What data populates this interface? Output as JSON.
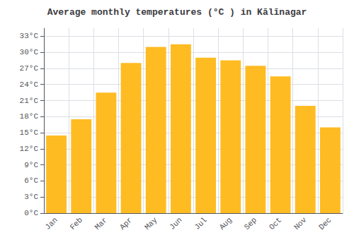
{
  "chart_data": {
    "type": "bar",
    "title": "Average monthly temperatures (°C ) in Kālīnagar",
    "categories": [
      "Jan",
      "Feb",
      "Mar",
      "Apr",
      "May",
      "Jun",
      "Jul",
      "Aug",
      "Sep",
      "Oct",
      "Nov",
      "Dec"
    ],
    "values": [
      14.5,
      17.5,
      22.5,
      28,
      31,
      31.5,
      29,
      28.5,
      27.5,
      25.5,
      20,
      16
    ],
    "color": "#FFBB22",
    "ylim": [
      0,
      34.5
    ],
    "yticks": [
      {
        "value": 0,
        "label": "0°C"
      },
      {
        "value": 3,
        "label": "3°C"
      },
      {
        "value": 6,
        "label": "6°C"
      },
      {
        "value": 9,
        "label": "9°C"
      },
      {
        "value": 12,
        "label": "12°C"
      },
      {
        "value": 15,
        "label": "15°C"
      },
      {
        "value": 18,
        "label": "18°C"
      },
      {
        "value": 21,
        "label": "21°C"
      },
      {
        "value": 24,
        "label": "24°C"
      },
      {
        "value": 27,
        "label": "27°C"
      },
      {
        "value": 30,
        "label": "30°C"
      },
      {
        "value": 33,
        "label": "33°C"
      }
    ],
    "grid": true
  }
}
